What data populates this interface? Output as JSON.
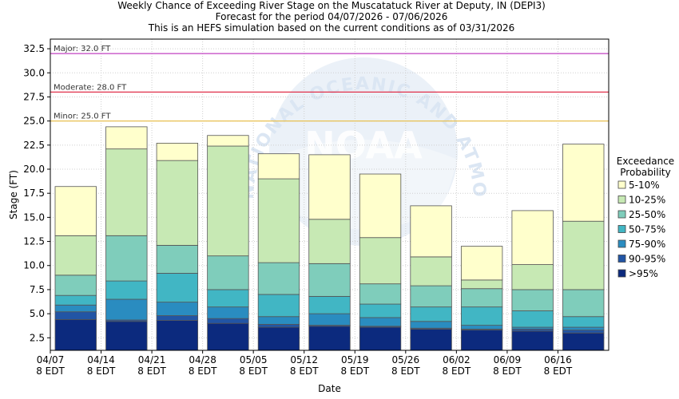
{
  "titles": {
    "line1": "Weekly Chance of Exceeding River Stage on the Muscatatuck River at Deputy, IN (DEPI3)",
    "line2": "Forecast for the period 04/07/2026 - 07/06/2026",
    "line3": "This is an HEFS simulation based on the current conditions as of 03/31/2026"
  },
  "watermark": {
    "logo_text": "NOAA",
    "ring_text": "NATIONAL OCEANIC AND ATMOSPHERIC ADMINISTRATION",
    "color": "#dbe6f3"
  },
  "chart_data": {
    "type": "bar",
    "stacked": true,
    "xlabel": "Date",
    "ylabel": "Stage (FT)",
    "ylim": [
      1.2,
      33.5
    ],
    "yticks": [
      "2.5",
      "5.0",
      "7.5",
      "10.0",
      "12.5",
      "15.0",
      "17.5",
      "20.0",
      "22.5",
      "25.0",
      "27.5",
      "30.0",
      "32.5"
    ],
    "ytick_values": [
      2.5,
      5.0,
      7.5,
      10.0,
      12.5,
      15.0,
      17.5,
      20.0,
      22.5,
      25.0,
      27.5,
      30.0,
      32.5
    ],
    "xticks": [
      {
        "date": "04/07",
        "tz": "8 EDT"
      },
      {
        "date": "04/14",
        "tz": "8 EDT"
      },
      {
        "date": "04/21",
        "tz": "8 EDT"
      },
      {
        "date": "04/28",
        "tz": "8 EDT"
      },
      {
        "date": "05/05",
        "tz": "8 EDT"
      },
      {
        "date": "05/12",
        "tz": "8 EDT"
      },
      {
        "date": "05/19",
        "tz": "8 EDT"
      },
      {
        "date": "05/26",
        "tz": "8 EDT"
      },
      {
        "date": "06/02",
        "tz": "8 EDT"
      },
      {
        "date": "06/09",
        "tz": "8 EDT"
      },
      {
        "date": "06/16",
        "tz": "8 EDT"
      }
    ],
    "flood_stages": [
      {
        "label": "Major: 32.0 FT",
        "value": 32.0,
        "color": "#c040c0"
      },
      {
        "label": "Moderate: 28.0 FT",
        "value": 28.0,
        "color": "#e0304a"
      },
      {
        "label": "Minor: 25.0 FT",
        "value": 25.0,
        "color": "#e8c050"
      }
    ],
    "legend": {
      "title_line1": "Exceedance",
      "title_line2": "Probability",
      "placement": "right"
    },
    "series": [
      {
        "name": ">95%",
        "color": "#0c2a7e"
      },
      {
        "name": "90-95%",
        "color": "#2255a5"
      },
      {
        "name": "75-90%",
        "color": "#2a8cc0"
      },
      {
        "name": "50-75%",
        "color": "#41b6c4"
      },
      {
        "name": "25-50%",
        "color": "#7fcdbb"
      },
      {
        "name": "10-25%",
        "color": "#c7e9b4"
      },
      {
        "name": "5-10%",
        "color": "#ffffcc"
      }
    ],
    "weeks": [
      {
        "start": "04/07",
        "bounds": [
          4.4,
          5.2,
          5.9,
          6.9,
          9.0,
          13.1,
          18.2
        ]
      },
      {
        "start": "04/14",
        "bounds": [
          4.2,
          4.35,
          6.5,
          8.4,
          13.1,
          22.1,
          24.4
        ]
      },
      {
        "start": "04/21",
        "bounds": [
          4.3,
          4.8,
          6.2,
          9.2,
          12.1,
          20.9,
          22.7
        ]
      },
      {
        "start": "04/28",
        "bounds": [
          4.0,
          4.5,
          5.7,
          7.5,
          11.0,
          22.4,
          23.5
        ]
      },
      {
        "start": "05/05",
        "bounds": [
          3.6,
          3.9,
          4.7,
          7.0,
          10.3,
          19.0,
          21.6
        ]
      },
      {
        "start": "05/12",
        "bounds": [
          3.7,
          3.8,
          5.0,
          6.8,
          10.2,
          14.8,
          21.5
        ]
      },
      {
        "start": "05/19",
        "bounds": [
          3.6,
          3.7,
          4.6,
          6.0,
          8.1,
          12.9,
          19.5
        ]
      },
      {
        "start": "05/26",
        "bounds": [
          3.4,
          3.5,
          4.2,
          5.7,
          7.9,
          10.9,
          16.2
        ]
      },
      {
        "start": "06/02",
        "bounds": [
          3.3,
          3.4,
          3.8,
          5.7,
          7.6,
          8.5,
          12.0
        ]
      },
      {
        "start": "06/09",
        "bounds": [
          3.2,
          3.4,
          3.6,
          5.3,
          7.5,
          10.1,
          15.7
        ]
      },
      {
        "start": "06/16",
        "bounds": [
          3.0,
          3.3,
          3.6,
          4.7,
          7.5,
          14.6,
          22.6
        ]
      }
    ]
  }
}
